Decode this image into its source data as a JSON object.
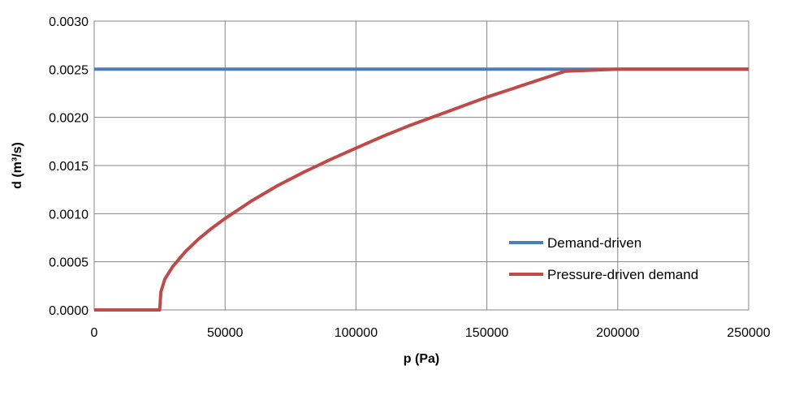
{
  "chart_data": {
    "type": "line",
    "xlabel": "p (Pa)",
    "ylabel": "d (m³/s)",
    "xlim": [
      0,
      250000
    ],
    "ylim": [
      0,
      0.003
    ],
    "x_ticks": [
      "0",
      "50000",
      "100000",
      "150000",
      "200000",
      "250000"
    ],
    "y_ticks": [
      "0.0000",
      "0.0005",
      "0.0010",
      "0.0015",
      "0.0020",
      "0.0025",
      "0.0030"
    ],
    "grid": true,
    "legend_position": "inside-right",
    "series": [
      {
        "name": "Demand-driven",
        "color": "#4a7ebb",
        "x": [
          0,
          250000
        ],
        "y": [
          0.0025,
          0.0025
        ]
      },
      {
        "name": "Pressure-driven demand",
        "color": "#be4b48",
        "x": [
          0,
          25000,
          25500,
          27000,
          30000,
          35000,
          40000,
          45000,
          50000,
          60000,
          70000,
          80000,
          90000,
          100000,
          110000,
          120000,
          130000,
          140000,
          150000,
          160000,
          170000,
          180000,
          190000,
          200000,
          250000
        ],
        "y": [
          0,
          0,
          0.00019,
          0.00032,
          0.00045,
          0.00061,
          0.00074,
          0.00085,
          0.00095,
          0.00113,
          0.00129,
          0.00143,
          0.00156,
          0.00168,
          0.0018,
          0.00191,
          0.00201,
          0.00211,
          0.00221,
          0.0023,
          0.00239,
          0.00248,
          0.00249,
          0.0025,
          0.0025
        ]
      }
    ]
  }
}
